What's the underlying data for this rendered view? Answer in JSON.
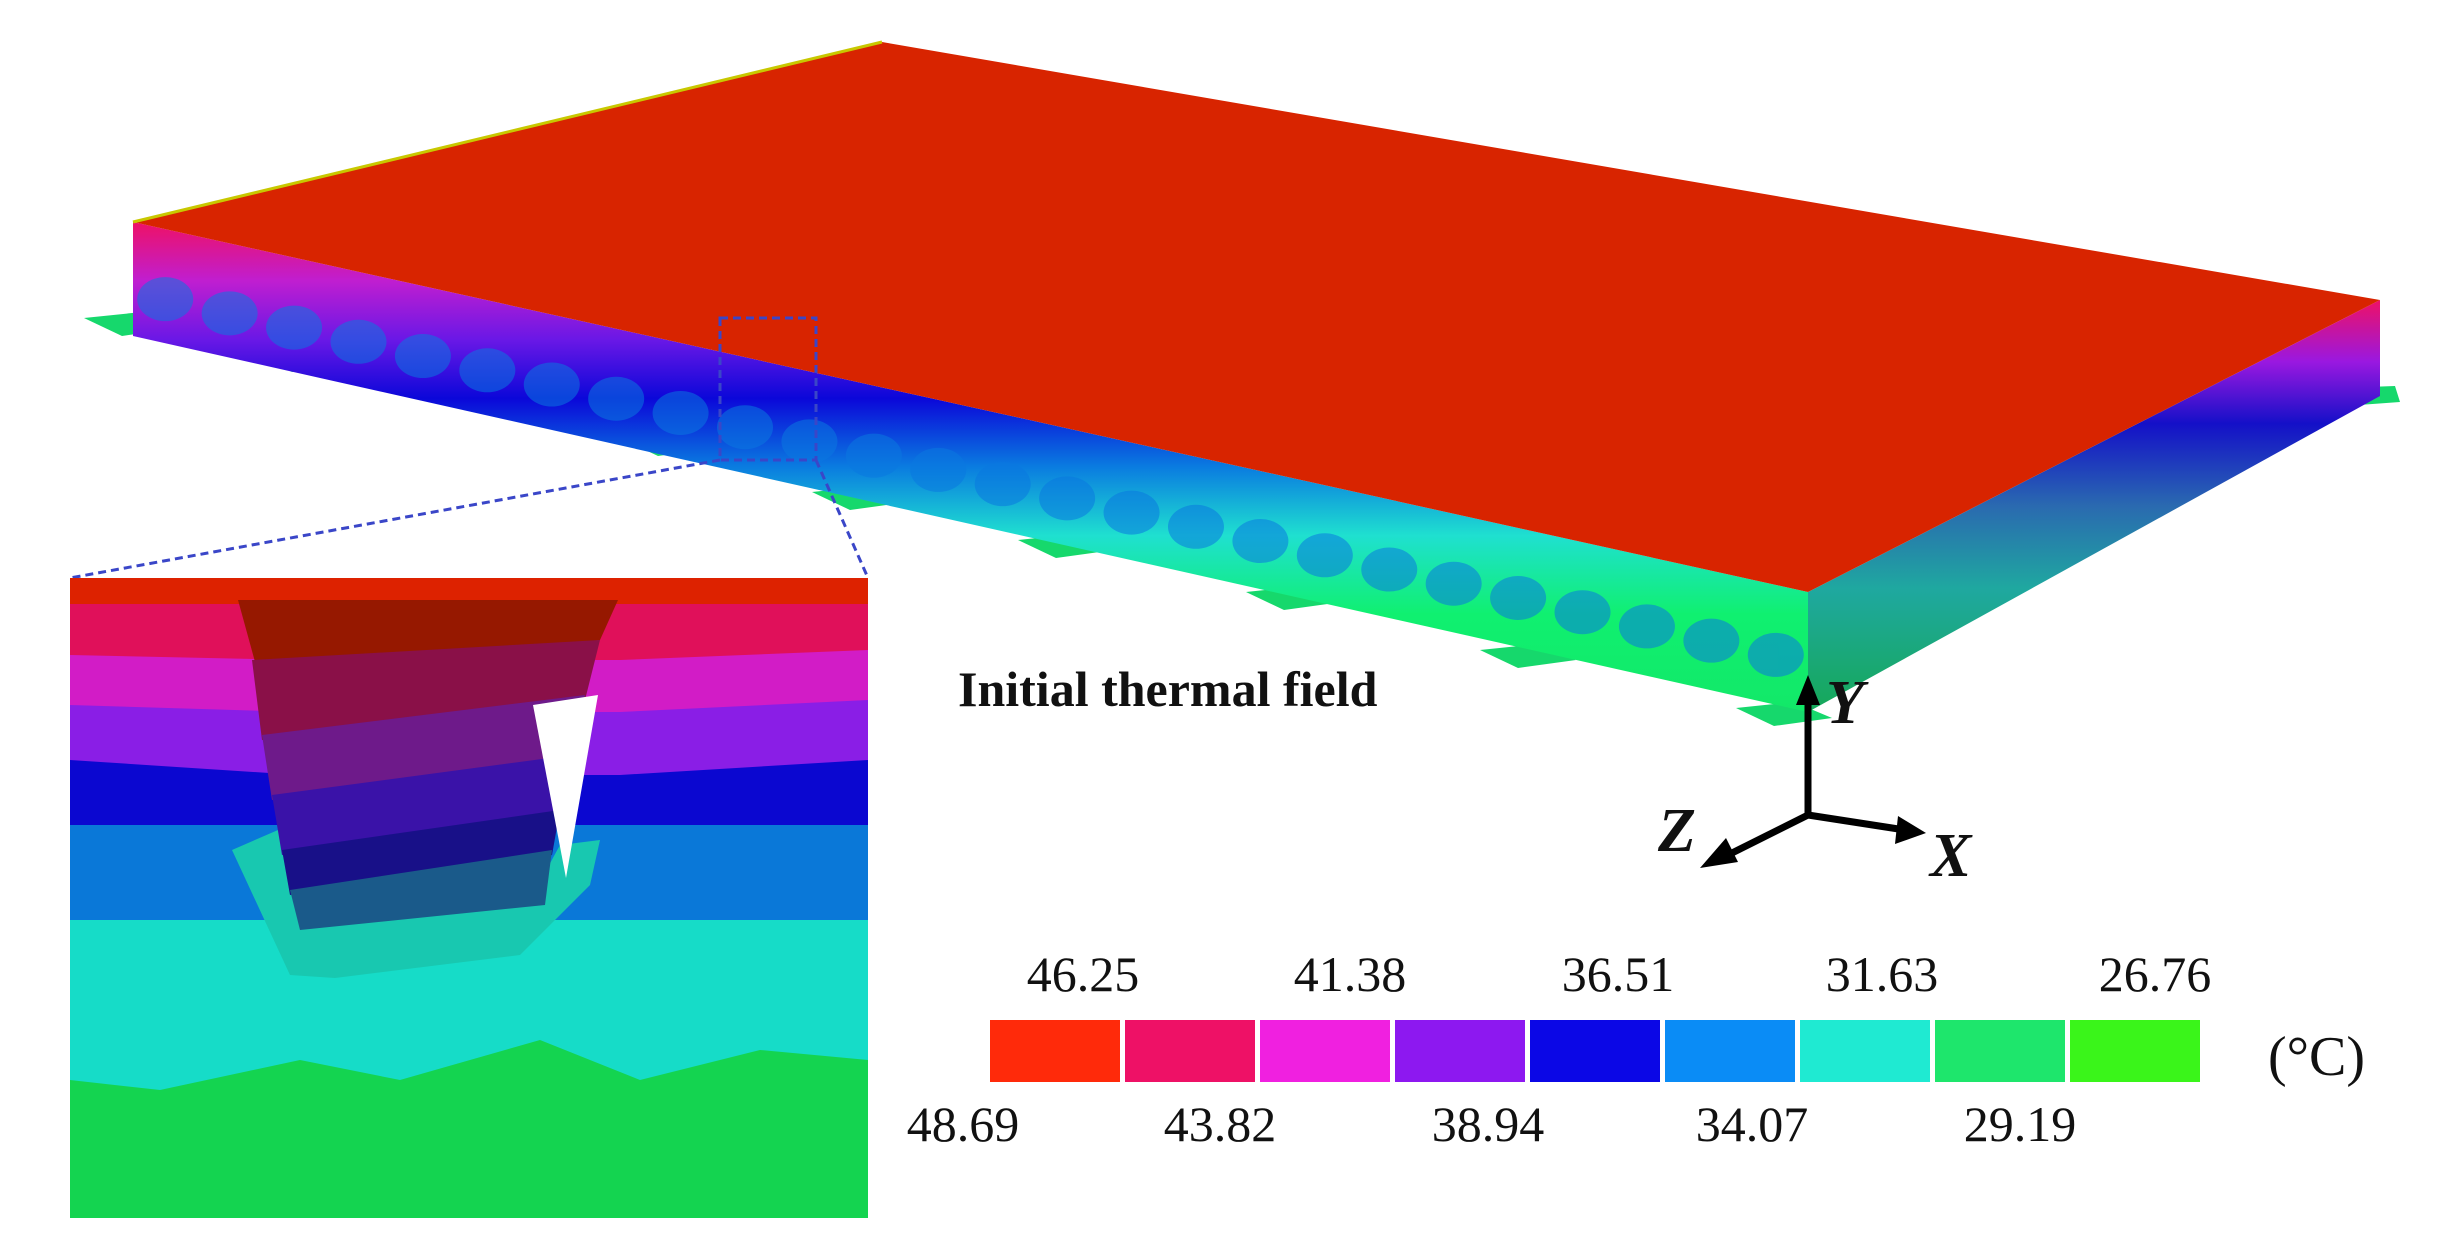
{
  "title": "Initial thermal field",
  "axes": {
    "y": "Y",
    "z": "Z",
    "x": "X"
  },
  "legend": {
    "unit": "(°C)",
    "top_ticks": [
      "46.25",
      "41.38",
      "36.51",
      "31.63",
      "26.76"
    ],
    "bottom_ticks": [
      "48.69",
      "43.82",
      "38.94",
      "34.07",
      "29.19"
    ],
    "colors": [
      "#ff2a0a",
      "#ee1166",
      "#f020e0",
      "#8d18f0",
      "#0b07e6",
      "#0a8cf6",
      "#1fead2",
      "#1ee66c",
      "#3af51a"
    ]
  },
  "palette": {
    "top_surface": "#d82400",
    "edge_bands": [
      "#ee1166",
      "#d11ec8",
      "#8a16e6",
      "#0b07d9",
      "#0a78e0",
      "#1fe6d2",
      "#10f070"
    ],
    "support_pad": "#16d86c",
    "inset_bands": [
      "#dd2200",
      "#e0105a",
      "#d21cc6",
      "#8a1ee6",
      "#0b07d0",
      "#0a78d8",
      "#16dcc8",
      "#14d450"
    ],
    "dashed_box": "#3a46c8"
  }
}
